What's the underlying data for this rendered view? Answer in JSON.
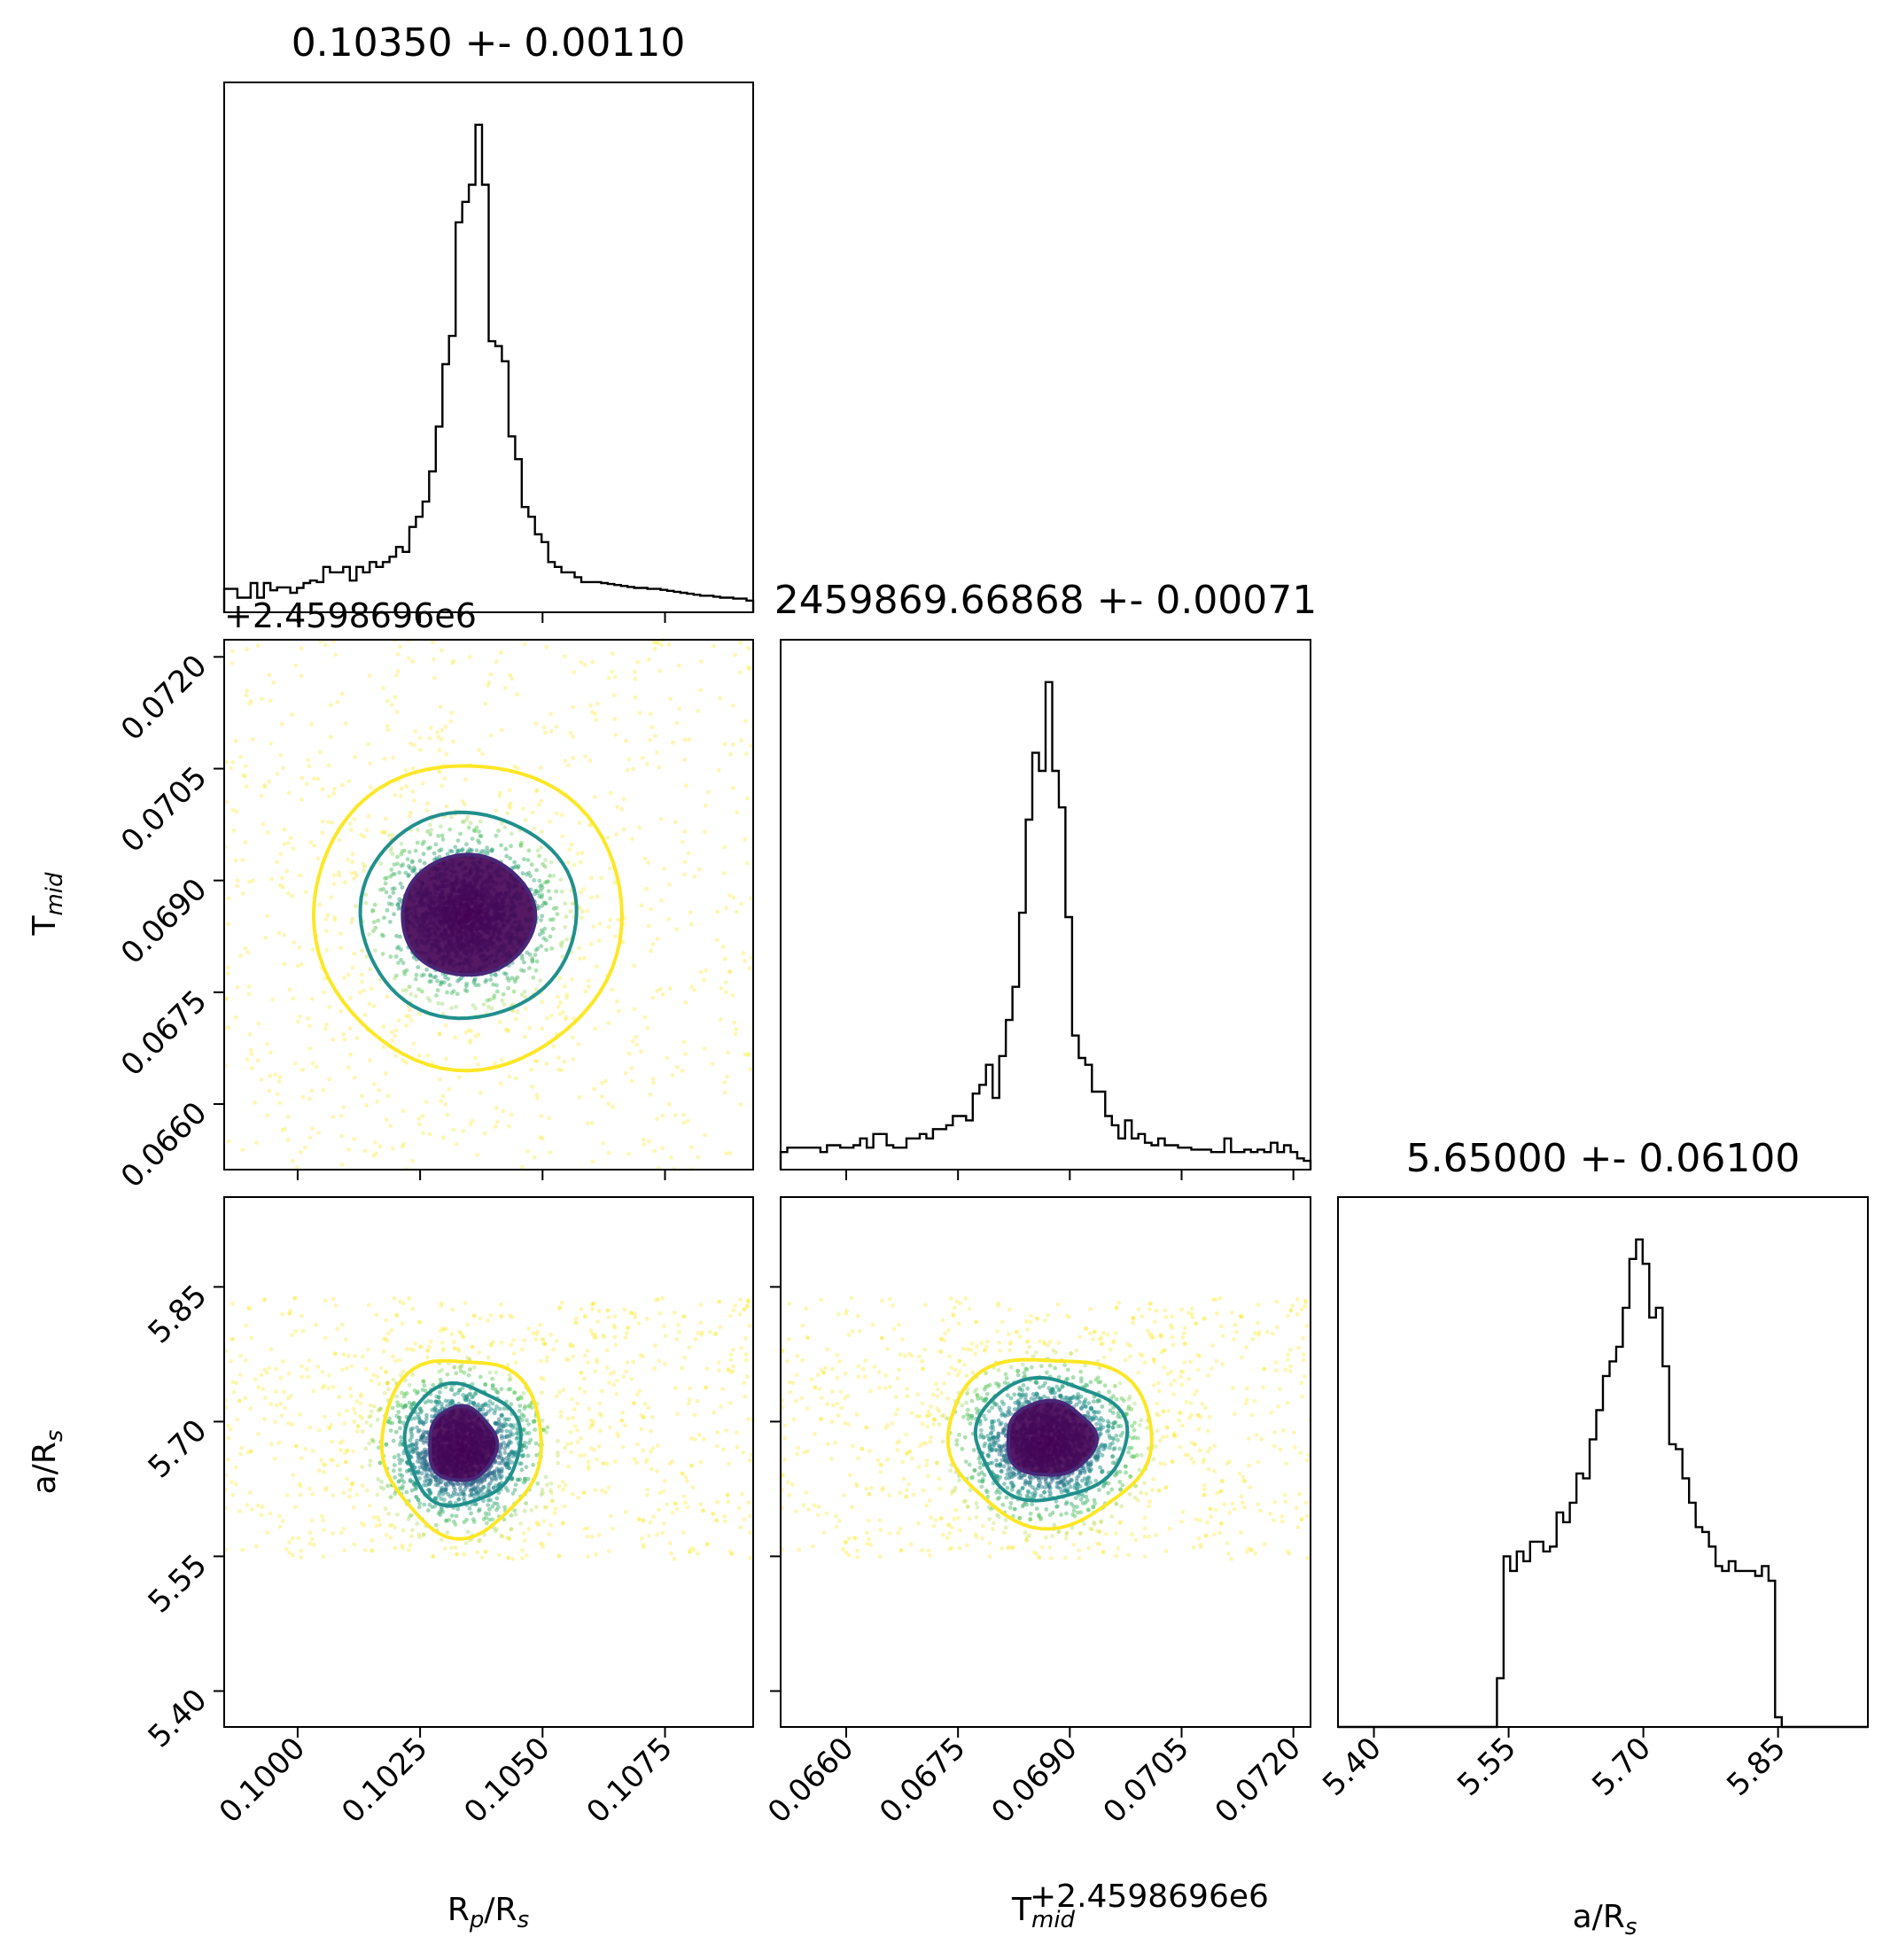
{
  "chart_data": [
    {
      "type": "histogram",
      "panel": "diag-0",
      "title": "0.10350 +- 0.00110",
      "xlim": [
        0.0985,
        0.1093
      ],
      "bins_x0": 0.0985,
      "bins_x1": 0.1093,
      "counts": [
        0.048,
        0.048,
        0.03,
        0.03,
        0.06,
        0.03,
        0.06,
        0.045,
        0.051,
        0.051,
        0.04,
        0.05,
        0.06,
        0.065,
        0.062,
        0.093,
        0.082,
        0.082,
        0.093,
        0.065,
        0.093,
        0.082,
        0.103,
        0.093,
        0.103,
        0.114,
        0.134,
        0.124,
        0.175,
        0.196,
        0.227,
        0.289,
        0.381,
        0.509,
        0.567,
        0.8,
        0.842,
        0.877,
        1.0,
        0.877,
        0.556,
        0.546,
        0.515,
        0.361,
        0.314,
        0.216,
        0.196,
        0.16,
        0.144,
        0.103,
        0.093,
        0.082,
        0.082,
        0.072,
        0.062,
        0.062,
        0.062,
        0.06,
        0.058,
        0.056,
        0.054,
        0.052,
        0.05,
        0.05,
        0.048,
        0.048,
        0.046,
        0.044,
        0.042,
        0.04,
        0.038,
        0.036,
        0.034,
        0.034,
        0.032,
        0.03,
        0.03,
        0.028,
        0.028,
        0.024
      ]
    },
    {
      "type": "histogram",
      "panel": "diag-1",
      "title": "2459869.66868 +- 0.00071",
      "xlim": [
        0.06512,
        0.07223
      ],
      "bins_x0": 0.06512,
      "bins_x1": 0.07223,
      "counts": [
        0.036,
        0.045,
        0.045,
        0.045,
        0.045,
        0.045,
        0.036,
        0.05,
        0.05,
        0.045,
        0.045,
        0.05,
        0.064,
        0.045,
        0.073,
        0.073,
        0.05,
        0.045,
        0.045,
        0.064,
        0.064,
        0.073,
        0.064,
        0.083,
        0.083,
        0.091,
        0.11,
        0.11,
        0.101,
        0.156,
        0.174,
        0.215,
        0.147,
        0.233,
        0.307,
        0.375,
        0.527,
        0.718,
        0.855,
        0.818,
        1.0,
        0.818,
        0.743,
        0.518,
        0.275,
        0.229,
        0.215,
        0.16,
        0.16,
        0.11,
        0.091,
        0.064,
        0.101,
        0.064,
        0.073,
        0.055,
        0.05,
        0.064,
        0.05,
        0.05,
        0.045,
        0.045,
        0.041,
        0.041,
        0.041,
        0.036,
        0.036,
        0.064,
        0.036,
        0.036,
        0.041,
        0.036,
        0.041,
        0.036,
        0.055,
        0.036,
        0.05,
        0.036,
        0.023,
        0.018
      ]
    },
    {
      "type": "histogram",
      "panel": "diag-2",
      "title": "5.65000 +- 0.06100",
      "xlabel": "a/R_s",
      "xlim": [
        5.36,
        5.95
      ],
      "bins_x0": 5.36,
      "bins_x1": 5.95,
      "counts": [
        0,
        0,
        0,
        0,
        0,
        0,
        0,
        0,
        0,
        0,
        0,
        0,
        0,
        0,
        0,
        0,
        0,
        0,
        0,
        0,
        0,
        0,
        0,
        0,
        0.1,
        0.35,
        0.32,
        0.36,
        0.34,
        0.38,
        0.38,
        0.36,
        0.37,
        0.44,
        0.42,
        0.46,
        0.52,
        0.51,
        0.59,
        0.65,
        0.72,
        0.75,
        0.78,
        0.86,
        0.96,
        1.0,
        0.95,
        0.84,
        0.86,
        0.74,
        0.58,
        0.57,
        0.51,
        0.46,
        0.41,
        0.4,
        0.37,
        0.33,
        0.32,
        0.34,
        0.32,
        0.32,
        0.32,
        0.31,
        0.33,
        0.3,
        0.02,
        0,
        0,
        0,
        0,
        0,
        0,
        0,
        0,
        0,
        0,
        0,
        0,
        0
      ]
    },
    {
      "type": "scatter",
      "panel": "lower-1-0",
      "description": "T_mid vs R_p/R_s joint posterior with density contours",
      "xlim": [
        0.0985,
        0.1093
      ],
      "ylim": [
        0.06512,
        0.07223
      ],
      "center": [
        0.10315,
        0.06845
      ],
      "contour_colors": [
        "#482878",
        "#21908d",
        "#fde725"
      ]
    },
    {
      "type": "scatter",
      "panel": "lower-2-0",
      "description": "a/R_s vs R_p/R_s joint posterior with density contours",
      "xlim": [
        0.0985,
        0.1093
      ],
      "ylim": [
        5.36,
        5.95
      ],
      "center": [
        0.1031,
        5.665
      ]
    },
    {
      "type": "scatter",
      "panel": "lower-2-1",
      "description": "a/R_s vs T_mid joint posterior with density contours",
      "xlim": [
        0.06512,
        0.07223
      ],
      "ylim": [
        5.36,
        5.95
      ],
      "center": [
        0.0684,
        5.67
      ]
    }
  ],
  "axes": {
    "rp_ticks": [
      "0.1000",
      "0.1025",
      "0.1050",
      "0.1075"
    ],
    "rp_tick_values": [
      0.1,
      0.1025,
      0.105,
      0.1075
    ],
    "tmid_ticks": [
      "0.0660",
      "0.0675",
      "0.0690",
      "0.0705",
      "0.0720"
    ],
    "tmid_tick_values": [
      0.066,
      0.0675,
      0.069,
      0.0705,
      0.072
    ],
    "ars_ticks": [
      "5.40",
      "5.55",
      "5.70",
      "5.85"
    ],
    "ars_tick_values": [
      5.4,
      5.55,
      5.7,
      5.85
    ],
    "offset_text": "+2.4598696e6",
    "xlabel_rp_main": "R",
    "xlabel_rp_sub": "p",
    "xlabel_rp_mid": "/R",
    "xlabel_rp_sub2": "s",
    "xlabel_tmid_main": "T",
    "xlabel_tmid_sub": "mid",
    "xlabel_tmid_offset": "+2.4598696e6",
    "xlabel_ars_main": "a/R",
    "xlabel_ars_sub": "s",
    "ylabel_tmid_main": "T",
    "ylabel_tmid_sub": "mid",
    "ylabel_ars_main": "a/R",
    "ylabel_ars_sub": "s"
  },
  "colors": {
    "inner_contour": "#482878",
    "middle_contour": "#21908d",
    "outer_contour": "#fde725",
    "dense": "#440154",
    "sparse": "#fde725"
  }
}
